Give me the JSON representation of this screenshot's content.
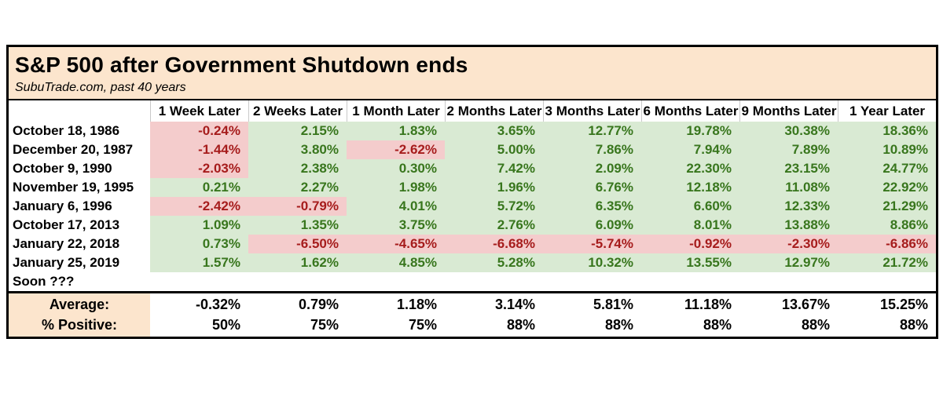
{
  "chart_data": {
    "type": "table",
    "title": "S&P 500 after Government Shutdown ends",
    "subtitle": "SubuTrade.com, past 40 years",
    "columns": [
      "1 Week Later",
      "2 Weeks Later",
      "1 Month Later",
      "2 Months Later",
      "3 Months Later",
      "6 Months Later",
      "9 Months Later",
      "1 Year Later"
    ],
    "rows": [
      {
        "label": "October 18, 1986",
        "values": [
          "-0.24%",
          "2.15%",
          "1.83%",
          "3.65%",
          "12.77%",
          "19.78%",
          "30.38%",
          "18.36%"
        ]
      },
      {
        "label": "December 20, 1987",
        "values": [
          "-1.44%",
          "3.80%",
          "-2.62%",
          "5.00%",
          "7.86%",
          "7.94%",
          "7.89%",
          "10.89%"
        ]
      },
      {
        "label": "October 9, 1990",
        "values": [
          "-2.03%",
          "2.38%",
          "0.30%",
          "7.42%",
          "2.09%",
          "22.30%",
          "23.15%",
          "24.77%"
        ]
      },
      {
        "label": "November 19, 1995",
        "values": [
          "0.21%",
          "2.27%",
          "1.98%",
          "1.96%",
          "6.76%",
          "12.18%",
          "11.08%",
          "22.92%"
        ]
      },
      {
        "label": "January 6, 1996",
        "values": [
          "-2.42%",
          "-0.79%",
          "4.01%",
          "5.72%",
          "6.35%",
          "6.60%",
          "12.33%",
          "21.29%"
        ]
      },
      {
        "label": "October 17, 2013",
        "values": [
          "1.09%",
          "1.35%",
          "3.75%",
          "2.76%",
          "6.09%",
          "8.01%",
          "13.88%",
          "8.86%"
        ]
      },
      {
        "label": "January 22, 2018",
        "values": [
          "0.73%",
          "-6.50%",
          "-4.65%",
          "-6.68%",
          "-5.74%",
          "-0.92%",
          "-2.30%",
          "-6.86%"
        ]
      },
      {
        "label": "January 25, 2019",
        "values": [
          "1.57%",
          "1.62%",
          "4.85%",
          "5.28%",
          "10.32%",
          "13.55%",
          "12.97%",
          "21.72%"
        ]
      },
      {
        "label": "Soon ???",
        "values": []
      }
    ],
    "summary": [
      {
        "label": "Average:",
        "values": [
          "-0.32%",
          "0.79%",
          "1.18%",
          "3.14%",
          "5.81%",
          "11.18%",
          "13.67%",
          "15.25%"
        ]
      },
      {
        "label": "% Positive:",
        "values": [
          "50%",
          "75%",
          "75%",
          "88%",
          "88%",
          "88%",
          "88%",
          "88%"
        ]
      }
    ],
    "colors": {
      "band_bg": "#fce5cd",
      "positive_bg": "#d9ead3",
      "negative_bg": "#f4cccc",
      "positive_text": "#38761d",
      "negative_text": "#a61c1c",
      "border": "#000000"
    },
    "layout": {
      "legend": "none",
      "grid": "header-separators-only",
      "value_alignment": "right",
      "label_alignment": "left"
    }
  }
}
